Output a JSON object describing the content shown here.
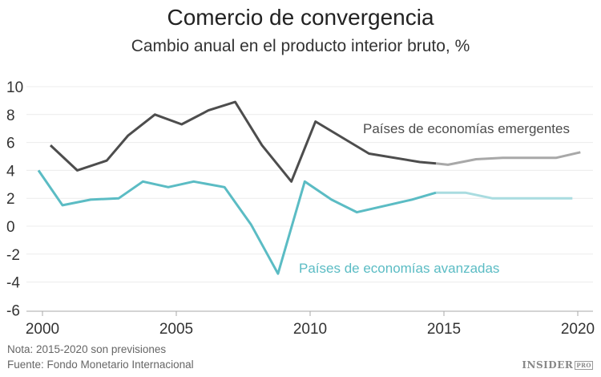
{
  "chart_data": {
    "type": "line",
    "title": "Comercio de convergencia",
    "subtitle": "Cambio anual en el producto interior bruto, %",
    "xlim": [
      2000,
      2020
    ],
    "ylim": [
      -6,
      10
    ],
    "x_ticks": [
      "2000",
      "2005",
      "2010",
      "2015",
      "2020"
    ],
    "y_ticks": [
      "10",
      "8",
      "6",
      "4",
      "2",
      "0",
      "-2",
      "-4",
      "-6"
    ],
    "grid": "horizontal",
    "series": [
      {
        "name": "Países de economías emergentes",
        "color": "#4d4d4d",
        "forecast_color": "#a8a8a8",
        "points": [
          [
            2000.3,
            5.8
          ],
          [
            2001.3,
            4.0
          ],
          [
            2002.4,
            4.7
          ],
          [
            2003.2,
            6.5
          ],
          [
            2004.2,
            8.0
          ],
          [
            2005.2,
            7.3
          ],
          [
            2006.2,
            8.3
          ],
          [
            2007.2,
            8.9
          ],
          [
            2008.2,
            5.8
          ],
          [
            2009.3,
            3.2
          ],
          [
            2010.2,
            7.5
          ],
          [
            2012.2,
            5.2
          ],
          [
            2014.1,
            4.6
          ],
          [
            2014.7,
            4.5
          ]
        ],
        "forecast": [
          [
            2014.7,
            4.5
          ],
          [
            2015.15,
            4.4
          ],
          [
            2016.2,
            4.8
          ],
          [
            2017.2,
            4.9
          ],
          [
            2019.2,
            4.9
          ],
          [
            2020.1,
            5.3
          ]
        ]
      },
      {
        "name": "Países de economías avanzadas",
        "color": "#5bbcc4",
        "forecast_color": "#a9dce0",
        "points": [
          [
            1999.85,
            4.0
          ],
          [
            2000.75,
            1.5
          ],
          [
            2001.8,
            1.9
          ],
          [
            2002.85,
            2.0
          ],
          [
            2003.75,
            3.2
          ],
          [
            2004.7,
            2.8
          ],
          [
            2005.65,
            3.2
          ],
          [
            2006.8,
            2.8
          ],
          [
            2007.8,
            0.1
          ],
          [
            2008.8,
            -3.4
          ],
          [
            2009.8,
            3.2
          ],
          [
            2010.8,
            1.9
          ],
          [
            2011.75,
            1.0
          ],
          [
            2013.8,
            1.9
          ],
          [
            2014.7,
            2.4
          ]
        ],
        "forecast": [
          [
            2014.7,
            2.4
          ],
          [
            2015.8,
            2.4
          ],
          [
            2016.8,
            2.0
          ],
          [
            2019.8,
            2.0
          ]
        ]
      }
    ]
  },
  "notes": {
    "note": "Nota: 2015-2020 son previsiones",
    "source": "Fuente: Fondo Monetario Internacional"
  },
  "logo": {
    "text": "INSIDER",
    "badge": "PRO"
  }
}
